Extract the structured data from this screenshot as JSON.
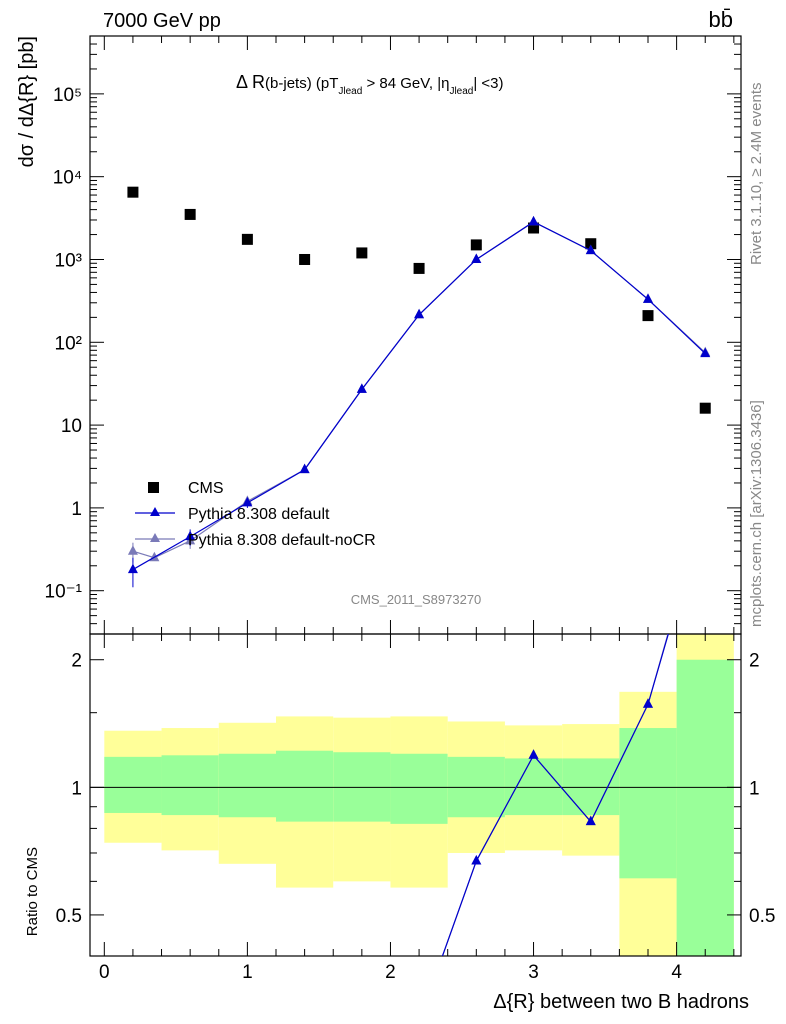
{
  "header": {
    "energy": "7000 GeV pp",
    "process": "bb̄",
    "rivet": "Rivet 3.1.10, ≥ 2.4M events",
    "site": "mcplots.cern.ch [arXiv:1306.3436]",
    "analysis": "CMS_2011_S8973270"
  },
  "main_title": {
    "prefix": "Δ R",
    "p1": "(b-jets) (pT",
    "s1": "Jlead",
    "p2": " >  84 GeV, |η",
    "s2": "Jlead",
    "p3": "| <3)"
  },
  "top_ylabel": "dσ / dΔ{R} [pb]",
  "ratio_ylabel": "Ratio to CMS",
  "xlabel": "Δ{R} between two B hadrons",
  "legend": [
    "CMS",
    "Pythia 8.308 default",
    "Pythia 8.308 default-noCR"
  ],
  "colors": {
    "data": "#000000",
    "pythia_default": "#0000cc",
    "pythia_nocr": "#7a7ab8",
    "band_inner": "#99ff99",
    "band_outer": "#ffff99"
  },
  "chart_data": [
    {
      "type": "scatter",
      "panel": "main",
      "y_scale": "log",
      "ylim": [
        0.03,
        500000
      ],
      "xlim": [
        -0.1,
        4.45
      ],
      "y_tick_labels": [
        "10⁻¹",
        "1",
        "10",
        "10²",
        "10³",
        "10⁴",
        "10⁵"
      ],
      "series": [
        {
          "name": "CMS",
          "x": [
            0.2,
            0.6,
            1.0,
            1.4,
            1.8,
            2.2,
            2.6,
            3.0,
            3.4,
            3.8,
            4.2
          ],
          "y": [
            6500,
            3500,
            1750,
            1000,
            1200,
            780,
            1500,
            2400,
            1550,
            210,
            16
          ]
        },
        {
          "name": "Pythia 8.308 default",
          "x": [
            0.2,
            0.6,
            1.0,
            1.4,
            1.8,
            2.2,
            2.6,
            3.0,
            3.4,
            3.8,
            4.2
          ],
          "y": [
            0.18,
            0.45,
            1.15,
            2.9,
            27,
            215,
            1000,
            2850,
            1280,
            330,
            73
          ],
          "yerr": [
            0.07,
            0.1,
            0.15,
            0.2,
            1,
            5,
            10,
            20,
            15,
            5,
            2
          ]
        },
        {
          "name": "Pythia 8.308 default-noCR",
          "x": [
            0.2,
            0.35,
            0.6,
            1.0,
            1.4,
            1.8,
            2.2,
            2.6,
            3.0,
            3.4,
            3.8,
            4.2
          ],
          "y": [
            0.3,
            0.25,
            0.4,
            1.2,
            2.9,
            27,
            215,
            1000,
            2850,
            1280,
            330,
            75
          ],
          "yerr": [
            0.08,
            0,
            0.08,
            0.15,
            0.2,
            1,
            5,
            10,
            20,
            15,
            5,
            2
          ]
        }
      ]
    },
    {
      "type": "line",
      "panel": "ratio",
      "y_scale": "log",
      "ylim": [
        0.4,
        2.3
      ],
      "xlim": [
        -0.1,
        4.45
      ],
      "x_tick_labels": [
        "0",
        "1",
        "2",
        "3",
        "4"
      ],
      "y_tick_labels": [
        "0.5",
        "1",
        "2"
      ],
      "bands": {
        "edges": [
          0.0,
          0.4,
          0.8,
          1.2,
          1.6,
          2.0,
          2.4,
          2.8,
          3.2,
          3.6,
          4.0,
          4.4
        ],
        "inner_lo": [
          0.87,
          0.86,
          0.85,
          0.83,
          0.83,
          0.82,
          0.85,
          0.86,
          0.86,
          0.61,
          0.35
        ],
        "inner_hi": [
          1.18,
          1.19,
          1.2,
          1.22,
          1.21,
          1.2,
          1.18,
          1.17,
          1.17,
          1.38,
          2.0
        ],
        "outer_lo": [
          0.74,
          0.71,
          0.66,
          0.58,
          0.6,
          0.58,
          0.7,
          0.71,
          0.69,
          0.35,
          0.35
        ],
        "outer_hi": [
          1.36,
          1.38,
          1.42,
          1.47,
          1.46,
          1.47,
          1.43,
          1.4,
          1.41,
          1.68,
          2.3
        ]
      },
      "series": [
        {
          "name": "Pythia 8.308 default",
          "x": [
            2.2,
            2.6,
            3.0,
            3.4,
            3.8,
            4.2
          ],
          "y": [
            0.28,
            0.67,
            1.19,
            0.83,
            1.57,
            4.6
          ]
        },
        {
          "name": "Pythia 8.308 default-noCR",
          "x": [
            2.2,
            2.6,
            3.0,
            3.4,
            3.8,
            4.2
          ],
          "y": [
            0.28,
            0.67,
            1.19,
            0.83,
            1.57,
            4.7
          ]
        }
      ]
    }
  ]
}
